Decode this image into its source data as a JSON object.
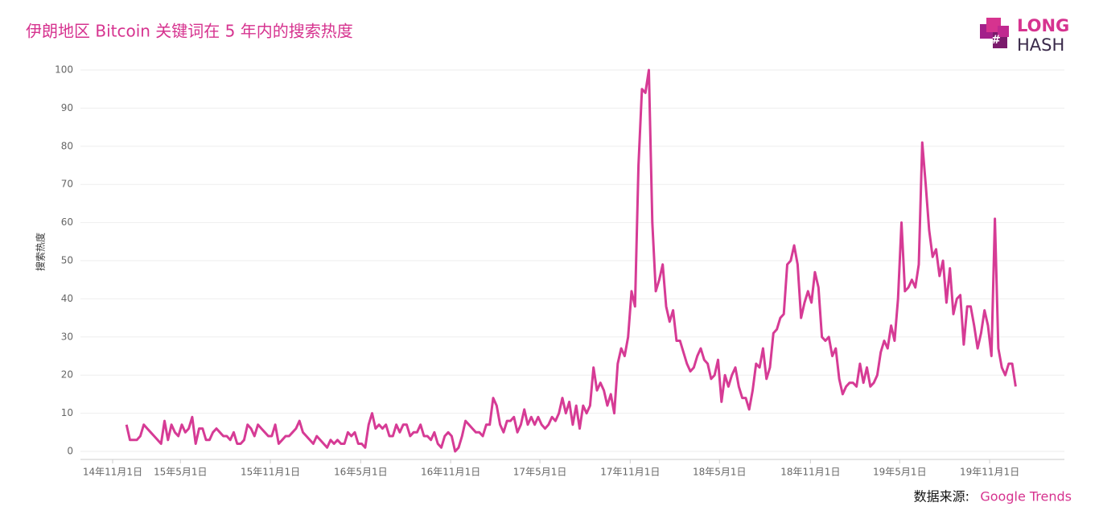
{
  "chart_data": {
    "type": "line",
    "title": "伊朗地区 Bitcoin 关键词在 5 年内的搜索热度",
    "y_label": "搜索热度",
    "color": "#d63b95",
    "ylim": [
      0,
      100
    ],
    "yticks": [
      0,
      10,
      20,
      30,
      40,
      50,
      60,
      70,
      80,
      90,
      100
    ],
    "grid": true,
    "xlim": [
      -13.3,
      271.1
    ],
    "xticks": [
      {
        "value": -4,
        "label": "14年11月1日"
      },
      {
        "value": 15.6,
        "label": "15年5月1日"
      },
      {
        "value": 41.6,
        "label": "15年11月1日"
      },
      {
        "value": 67.7,
        "label": "16年5月1日"
      },
      {
        "value": 93.7,
        "label": "16年11月1日"
      },
      {
        "value": 119.5,
        "label": "17年5月1日"
      },
      {
        "value": 145.6,
        "label": "17年11月1日"
      },
      {
        "value": 171.4,
        "label": "18年5月1日"
      },
      {
        "value": 197.7,
        "label": "18年11月1日"
      },
      {
        "value": 223.5,
        "label": "19年5月1日"
      },
      {
        "value": 249.5,
        "label": "19年11月1日"
      }
    ],
    "values": [
      7,
      3,
      3,
      3,
      4,
      7,
      6,
      5,
      4,
      3,
      2,
      8,
      3,
      7,
      5,
      4,
      7,
      5,
      6,
      9,
      2,
      6,
      6,
      3,
      3,
      5,
      6,
      5,
      4,
      4,
      3,
      5,
      2,
      2,
      3,
      7,
      6,
      4,
      7,
      6,
      5,
      4,
      4,
      7,
      2,
      3,
      4,
      4,
      5,
      6,
      8,
      5,
      4,
      3,
      2,
      4,
      3,
      2,
      1,
      3,
      2,
      3,
      2,
      2,
      5,
      4,
      5,
      2,
      2,
      1,
      7,
      10,
      6,
      7,
      6,
      7,
      4,
      4,
      7,
      5,
      7,
      7,
      4,
      5,
      5,
      7,
      4,
      4,
      3,
      5,
      2,
      1,
      4,
      5,
      4,
      0,
      1,
      4,
      8,
      7,
      6,
      5,
      5,
      4,
      7,
      7,
      14,
      12,
      7,
      5,
      8,
      8,
      9,
      5,
      7,
      11,
      7,
      9,
      7,
      9,
      7,
      6,
      7,
      9,
      8,
      10,
      14,
      10,
      13,
      7,
      12,
      6,
      12,
      10,
      12,
      22,
      16,
      18,
      16,
      12,
      15,
      10,
      23,
      27,
      25,
      30,
      42,
      38,
      75,
      95,
      94,
      100,
      60,
      42,
      45,
      49,
      38,
      34,
      37,
      29,
      29,
      26,
      23,
      21,
      22,
      25,
      27,
      24,
      23,
      19,
      20,
      24,
      13,
      20,
      17,
      20,
      22,
      17,
      14,
      14,
      11,
      16,
      23,
      22,
      27,
      19,
      22,
      31,
      32,
      35,
      36,
      49,
      50,
      54,
      49,
      35,
      39,
      42,
      39,
      47,
      43,
      30,
      29,
      30,
      25,
      27,
      19,
      15,
      17,
      18,
      18,
      17,
      23,
      18,
      22,
      17,
      18,
      20,
      26,
      29,
      27,
      33,
      29,
      40,
      60,
      42,
      43,
      45,
      43,
      49,
      81,
      70,
      58,
      51,
      53,
      46,
      50,
      39,
      48,
      36,
      40,
      41,
      28,
      38,
      38,
      33,
      27,
      31,
      37,
      33,
      25,
      61,
      27,
      22,
      20,
      23,
      23,
      17
    ]
  },
  "source": {
    "label": "数据来源:",
    "name": "Google Trends"
  },
  "logo": {
    "line1": "LONG",
    "line2": "HASH"
  }
}
